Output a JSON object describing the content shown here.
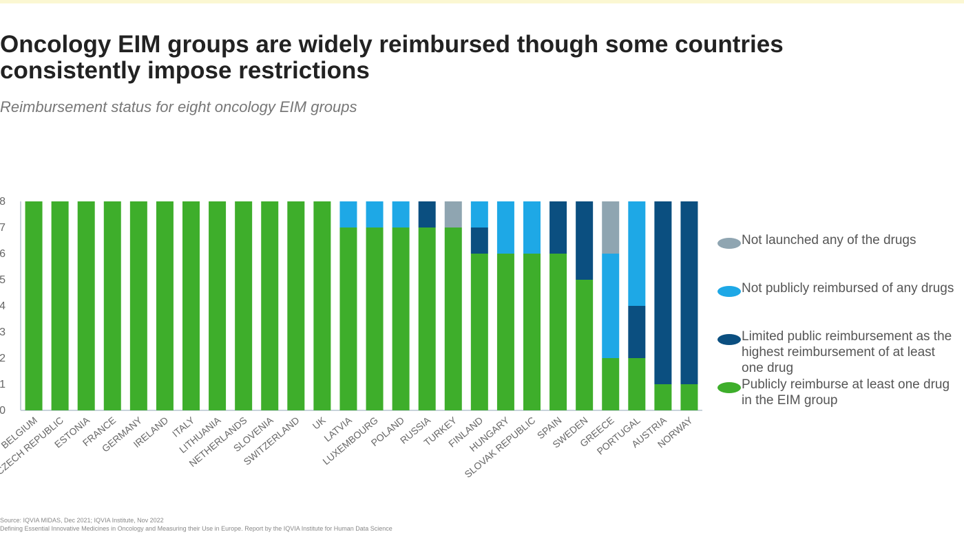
{
  "chart_data": {
    "type": "stacked-bar",
    "title": "Oncology EIM groups are widely reimbursed though some countries consistently impose restrictions",
    "subtitle": "Reimbursement status for eight oncology EIM groups",
    "categories": [
      "BELGIUM",
      "CZECH REPUBLIC",
      "ESTONIA",
      "FRANCE",
      "GERMANY",
      "IRELAND",
      "ITALY",
      "LITHUANIA",
      "NETHERLANDS",
      "SLOVENIA",
      "SWITZERLAND",
      "UK",
      "LATVIA",
      "LUXEMBOURG",
      "POLAND",
      "RUSSIA",
      "TURKEY",
      "FINLAND",
      "HUNGARY",
      "SLOVAK REPUBLIC",
      "SPAIN",
      "SWEDEN",
      "GREECE",
      "PORTUGAL",
      "AUSTRIA",
      "NORWAY"
    ],
    "series": [
      {
        "name": "Publicly reimburse at least one drug in the EIM group",
        "color": "#3eae2b",
        "values": [
          8,
          8,
          8,
          8,
          8,
          8,
          8,
          8,
          8,
          8,
          8,
          8,
          7,
          7,
          7,
          7,
          7,
          6,
          6,
          6,
          6,
          5,
          2,
          2,
          1,
          1
        ]
      },
      {
        "name": "Limited public reimbursement as the highest reimbursement of at least one drug",
        "color": "#0b4f80",
        "values": [
          0,
          0,
          0,
          0,
          0,
          0,
          0,
          0,
          0,
          0,
          0,
          0,
          0,
          0,
          0,
          1,
          0,
          1,
          0,
          0,
          2,
          3,
          0,
          2,
          7,
          7
        ]
      },
      {
        "name": "Not publicly reimbursed of any drugs",
        "color": "#1ea8e6",
        "values": [
          0,
          0,
          0,
          0,
          0,
          0,
          0,
          0,
          0,
          0,
          0,
          0,
          1,
          1,
          1,
          0,
          0,
          1,
          2,
          2,
          0,
          0,
          4,
          4,
          0,
          0
        ]
      },
      {
        "name": "Not launched any of the drugs",
        "color": "#8fa5b1",
        "values": [
          0,
          0,
          0,
          0,
          0,
          0,
          0,
          0,
          0,
          0,
          0,
          0,
          0,
          0,
          0,
          0,
          1,
          0,
          0,
          0,
          0,
          0,
          2,
          0,
          0,
          0
        ]
      }
    ],
    "ylim": [
      0,
      8
    ],
    "yticks": [
      0,
      1,
      2,
      3,
      4,
      5,
      6,
      7,
      8
    ],
    "source": "Source: IQVIA MIDAS, Dec 2021; IQVIA Institute, Nov 2022",
    "note": "Defining Essential Innovative Medicines in Oncology and Measuring their Use in Europe. Report by the IQVIA Institute for Human Data Science"
  }
}
